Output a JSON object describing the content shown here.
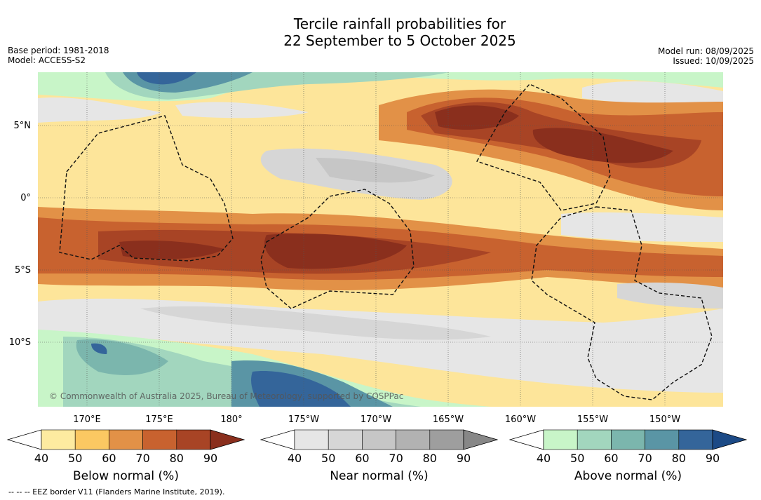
{
  "title_line1": "Tercile rainfall probabilities for",
  "title_line2": "22 September to 5 October 2025",
  "base_period": "Base period: 1981-2018",
  "model": "Model: ACCESS-S2",
  "model_run": "Model run: 08/09/2025",
  "issued": "Issued: 10/09/2025",
  "lat_labels": [
    "5°N",
    "0°",
    "5°S",
    "10°S"
  ],
  "lon_labels": [
    "170°E",
    "175°E",
    "180°",
    "175°W",
    "170°W",
    "165°W",
    "160°W",
    "155°W",
    "150°W"
  ],
  "credit": "© Commonwealth of Australia 2025, Bureau of Meteorology, supported by COSPPac",
  "footnote": "-- -- -- EEZ border V11 (Flanders Marine Institute, 2019).",
  "colorbars": [
    {
      "title": "Below normal (%)",
      "ticks": [
        "40",
        "50",
        "60",
        "70",
        "80",
        "90"
      ],
      "colors": [
        "#ffffff",
        "#fdeba0",
        "#fbc862",
        "#e29147",
        "#c8622f",
        "#a84425",
        "#8a2f1d"
      ]
    },
    {
      "title": "Near normal (%)",
      "ticks": [
        "40",
        "50",
        "60",
        "70",
        "80",
        "90"
      ],
      "colors": [
        "#ffffff",
        "#e6e6e6",
        "#d6d6d6",
        "#c6c6c6",
        "#b2b2b2",
        "#9e9e9e",
        "#878787"
      ]
    },
    {
      "title": "Above normal (%)",
      "ticks": [
        "40",
        "50",
        "60",
        "70",
        "80",
        "90"
      ],
      "colors": [
        "#ffffff",
        "#c8f5c8",
        "#a2d6be",
        "#7bb6ad",
        "#5a95a5",
        "#34659a",
        "#1c4a86"
      ]
    }
  ]
}
